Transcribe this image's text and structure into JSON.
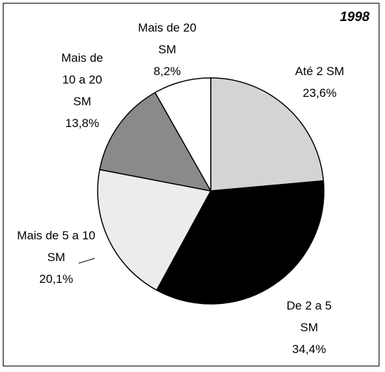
{
  "chart_data": {
    "type": "pie",
    "title": "1998",
    "categories": [
      "Até 2 SM",
      "De 2 a 5 SM",
      "Mais de 5 a 10 SM",
      "Mais de 10 a 20 SM",
      "Mais de 20 SM"
    ],
    "values": [
      23.6,
      34.4,
      20.1,
      13.8,
      8.2
    ],
    "value_labels": [
      "23,6%",
      "34,4%",
      "20,1%",
      "13,8%",
      "8,2%"
    ],
    "colors": [
      "#d4d4d4",
      "#000000",
      "#ececec",
      "#8a8a8a",
      "#ffffff"
    ]
  }
}
